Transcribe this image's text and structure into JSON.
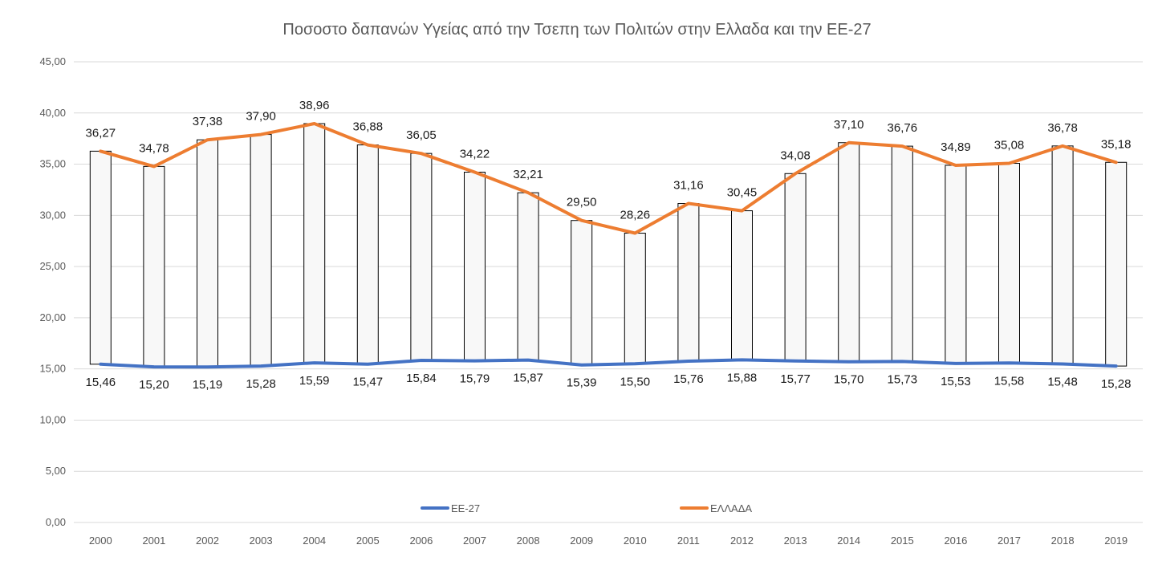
{
  "chart_data": {
    "type": "line",
    "title": "Ποσοστο δαπανών Υγείας από την Τσεπη των Πολιτών  στην Ελλαδα και την ΕΕ-27",
    "xlabel": "",
    "ylabel": "",
    "categories": [
      "2000",
      "2001",
      "2002",
      "2003",
      "2004",
      "2005",
      "2006",
      "2007",
      "2008",
      "2009",
      "2010",
      "2011",
      "2012",
      "2013",
      "2014",
      "2015",
      "2016",
      "2017",
      "2018",
      "2019"
    ],
    "y_ticks": [
      "0,00",
      "5,00",
      "10,00",
      "15,00",
      "20,00",
      "25,00",
      "30,00",
      "35,00",
      "40,00",
      "45,00"
    ],
    "ylim": [
      0,
      45
    ],
    "grid": true,
    "legend_position": "bottom",
    "high_low_bars": true,
    "series": [
      {
        "name": "ΕΕ-27",
        "color": "#4472c4",
        "values": [
          15.46,
          15.2,
          15.19,
          15.28,
          15.59,
          15.47,
          15.84,
          15.79,
          15.87,
          15.39,
          15.5,
          15.76,
          15.88,
          15.77,
          15.7,
          15.73,
          15.53,
          15.58,
          15.48,
          15.28
        ],
        "labels": [
          "15,46",
          "15,20",
          "15,19",
          "15,28",
          "15,59",
          "15,47",
          "15,84",
          "15,79",
          "15,87",
          "15,39",
          "15,50",
          "15,76",
          "15,88",
          "15,77",
          "15,70",
          "15,73",
          "15,53",
          "15,58",
          "15,48",
          "15,28"
        ]
      },
      {
        "name": "ΕΛΛΑΔΑ",
        "color": "#ed7d31",
        "values": [
          36.27,
          34.78,
          37.38,
          37.9,
          38.96,
          36.88,
          36.05,
          34.22,
          32.21,
          29.5,
          28.26,
          31.16,
          30.45,
          34.08,
          37.1,
          36.76,
          34.89,
          35.08,
          36.78,
          35.18
        ],
        "labels": [
          "36,27",
          "34,78",
          "37,38",
          "37,90",
          "38,96",
          "36,88",
          "36,05",
          "34,22",
          "32,21",
          "29,50",
          "28,26",
          "31,16",
          "30,45",
          "34,08",
          "37,10",
          "36,76",
          "34,89",
          "35,08",
          "36,78",
          "35,18"
        ]
      }
    ]
  }
}
